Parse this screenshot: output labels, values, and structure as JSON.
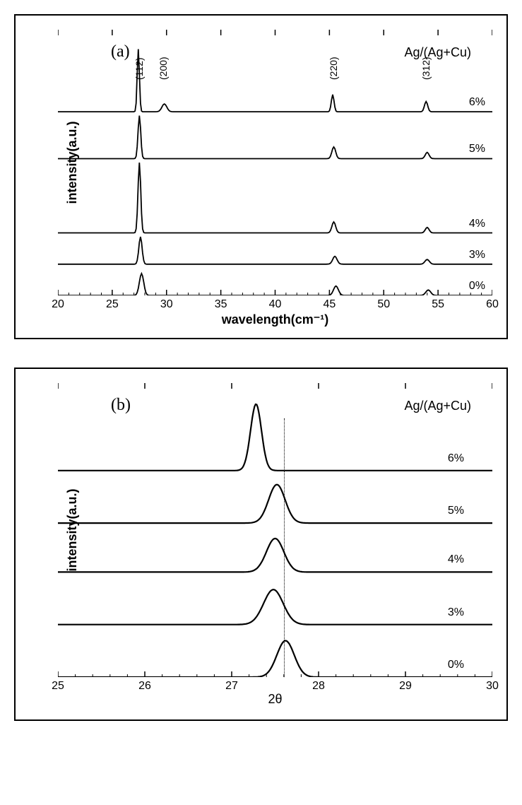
{
  "figure": {
    "background_color": "#ffffff",
    "line_color": "#000000",
    "axis_color": "#000000"
  },
  "panel_a": {
    "type": "line",
    "label": "(a)",
    "legend_title": "Ag/(Ag+Cu)",
    "ylabel": "intensity(a.u.)",
    "xlabel": "wavelength(cm⁻¹)",
    "xlim": [
      20,
      60
    ],
    "xtick_step": 5,
    "xticks": [
      20,
      25,
      30,
      35,
      40,
      45,
      50,
      55,
      60
    ],
    "line_width": 1.8,
    "label_fontsize": 18,
    "tick_fontsize": 16,
    "peak_positions": [
      27.6,
      29.8,
      45.5,
      54.0
    ],
    "peak_labels": [
      "(112)",
      "(200)",
      "(220)",
      "(312)"
    ],
    "series": [
      {
        "label": "0%",
        "offset": 0,
        "peaks": [
          {
            "x": 27.7,
            "h": 28,
            "w": 0.8
          },
          {
            "x": 45.6,
            "h": 12,
            "w": 0.9
          },
          {
            "x": 54.1,
            "h": 7,
            "w": 0.9
          }
        ]
      },
      {
        "label": "3%",
        "offset": 40,
        "peaks": [
          {
            "x": 27.6,
            "h": 35,
            "w": 0.6
          },
          {
            "x": 45.5,
            "h": 10,
            "w": 0.8
          },
          {
            "x": 54.0,
            "h": 6,
            "w": 0.8
          }
        ]
      },
      {
        "label": "4%",
        "offset": 80,
        "peaks": [
          {
            "x": 27.5,
            "h": 90,
            "w": 0.5
          },
          {
            "x": 45.4,
            "h": 14,
            "w": 0.7
          },
          {
            "x": 54.0,
            "h": 7,
            "w": 0.7
          }
        ]
      },
      {
        "label": "5%",
        "offset": 175,
        "peaks": [
          {
            "x": 27.5,
            "h": 55,
            "w": 0.5
          },
          {
            "x": 45.4,
            "h": 15,
            "w": 0.7
          },
          {
            "x": 54.0,
            "h": 8,
            "w": 0.7
          }
        ]
      },
      {
        "label": "6%",
        "offset": 235,
        "peaks": [
          {
            "x": 27.4,
            "h": 80,
            "w": 0.4
          },
          {
            "x": 29.8,
            "h": 10,
            "w": 0.9
          },
          {
            "x": 45.3,
            "h": 22,
            "w": 0.5
          },
          {
            "x": 53.9,
            "h": 13,
            "w": 0.6
          }
        ]
      }
    ],
    "y_total": 340
  },
  "panel_b": {
    "type": "line",
    "label": "(b)",
    "legend_title": "Ag/(Ag+Cu)",
    "ylabel": "intensity(a.u.)",
    "xlabel": "2θ",
    "xlim": [
      25,
      30
    ],
    "xtick_step": 1,
    "xticks": [
      25,
      26,
      27,
      28,
      29,
      30
    ],
    "line_width": 2.2,
    "label_fontsize": 18,
    "tick_fontsize": 16,
    "reference_line_x": 27.6,
    "series": [
      {
        "label": "0%",
        "offset": 0,
        "peak": {
          "x": 27.62,
          "h": 52,
          "w": 0.4
        }
      },
      {
        "label": "3%",
        "offset": 75,
        "peak": {
          "x": 27.48,
          "h": 50,
          "w": 0.45
        }
      },
      {
        "label": "4%",
        "offset": 150,
        "peak": {
          "x": 27.5,
          "h": 48,
          "w": 0.4
        }
      },
      {
        "label": "5%",
        "offset": 220,
        "peak": {
          "x": 27.52,
          "h": 55,
          "w": 0.38
        }
      },
      {
        "label": "6%",
        "offset": 295,
        "peak": {
          "x": 27.28,
          "h": 95,
          "w": 0.25
        }
      }
    ],
    "y_total": 420
  }
}
